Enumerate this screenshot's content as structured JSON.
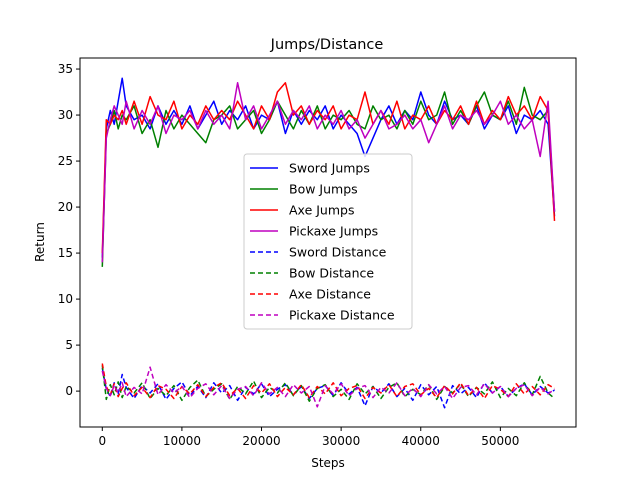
{
  "chart_data": {
    "type": "line",
    "title": "Jumps/Distance",
    "xlabel": "Steps",
    "ylabel": "Return",
    "xlim": [
      -2800,
      59500
    ],
    "ylim": [
      -3.9,
      36.2
    ],
    "xticks": [
      0,
      10000,
      20000,
      30000,
      40000,
      50000
    ],
    "yticks": [
      0,
      5,
      10,
      15,
      20,
      25,
      30,
      35
    ],
    "grid": false,
    "legend_position": "center",
    "series": [
      {
        "name": "Sword Jumps",
        "color": "#0000ff",
        "style": "solid",
        "x": [
          0,
          500,
          1000,
          1500,
          2000,
          2500,
          3000,
          4000,
          5000,
          6000,
          7000,
          8000,
          9000,
          10000,
          11000,
          12000,
          13000,
          14000,
          15000,
          16000,
          17000,
          18000,
          19000,
          20000,
          21000,
          22000,
          23000,
          24000,
          25000,
          26000,
          27000,
          28000,
          29000,
          30000,
          31000,
          32000,
          33000,
          34000,
          35000,
          36000,
          37000,
          38000,
          39000,
          40000,
          41000,
          42000,
          43000,
          44000,
          45000,
          46000,
          47000,
          48000,
          49000,
          50000,
          51000,
          52000,
          53000,
          54000,
          55000,
          56000,
          56800
        ],
        "y": [
          14.5,
          28.5,
          30.5,
          29.0,
          31.5,
          34.0,
          31.0,
          29.5,
          30.0,
          28.5,
          31.0,
          29.0,
          30.5,
          29.0,
          31.0,
          28.5,
          30.0,
          31.5,
          29.0,
          30.5,
          29.5,
          31.0,
          28.5,
          30.0,
          29.5,
          31.5,
          28.0,
          30.5,
          29.0,
          30.5,
          29.5,
          31.0,
          28.5,
          30.0,
          29.0,
          28.0,
          25.5,
          27.5,
          29.5,
          31.0,
          29.0,
          30.5,
          29.5,
          32.5,
          30.0,
          29.0,
          31.5,
          29.5,
          30.0,
          29.0,
          31.0,
          28.5,
          30.0,
          29.5,
          31.0,
          28.0,
          30.0,
          29.5,
          30.5,
          29.0,
          19.0
        ]
      },
      {
        "name": "Bow Jumps",
        "color": "#008000",
        "style": "solid",
        "x": [
          0,
          500,
          1000,
          1500,
          2000,
          2500,
          3000,
          4000,
          5000,
          6000,
          7000,
          8000,
          9000,
          10000,
          11000,
          12000,
          13000,
          14000,
          15000,
          16000,
          17000,
          18000,
          19000,
          20000,
          21000,
          22000,
          23000,
          24000,
          25000,
          26000,
          27000,
          28000,
          29000,
          30000,
          31000,
          32000,
          33000,
          34000,
          35000,
          36000,
          37000,
          38000,
          39000,
          40000,
          41000,
          42000,
          43000,
          44000,
          45000,
          46000,
          47000,
          48000,
          49000,
          50000,
          51000,
          52000,
          53000,
          54000,
          55000,
          56000,
          56800
        ],
        "y": [
          13.5,
          28.0,
          29.0,
          30.5,
          28.5,
          30.0,
          29.5,
          31.0,
          28.0,
          29.5,
          26.5,
          30.5,
          28.5,
          30.0,
          29.0,
          28.0,
          27.0,
          29.5,
          30.0,
          31.0,
          28.5,
          29.5,
          30.5,
          28.0,
          29.5,
          31.5,
          30.0,
          28.5,
          30.5,
          29.0,
          31.0,
          28.5,
          30.0,
          29.5,
          30.5,
          29.0,
          28.5,
          31.0,
          29.5,
          30.0,
          28.5,
          30.5,
          29.0,
          31.5,
          29.5,
          30.0,
          32.5,
          29.0,
          30.5,
          29.0,
          31.0,
          32.5,
          30.0,
          29.5,
          31.5,
          29.0,
          33.0,
          30.0,
          29.5,
          30.5,
          19.5
        ]
      },
      {
        "name": "Axe Jumps",
        "color": "#ff0000",
        "style": "solid",
        "x": [
          0,
          500,
          1000,
          1500,
          2000,
          2500,
          3000,
          4000,
          5000,
          6000,
          7000,
          8000,
          9000,
          10000,
          11000,
          12000,
          13000,
          14000,
          15000,
          16000,
          17000,
          18000,
          19000,
          20000,
          21000,
          22000,
          23000,
          24000,
          25000,
          26000,
          27000,
          28000,
          29000,
          30000,
          31000,
          32000,
          33000,
          34000,
          35000,
          36000,
          37000,
          38000,
          39000,
          40000,
          41000,
          42000,
          43000,
          44000,
          45000,
          46000,
          47000,
          48000,
          49000,
          50000,
          51000,
          52000,
          53000,
          54000,
          55000,
          56000,
          56800
        ],
        "y": [
          15.0,
          29.5,
          29.0,
          30.0,
          29.5,
          30.5,
          29.0,
          31.5,
          29.0,
          32.0,
          30.0,
          29.5,
          31.5,
          28.5,
          30.0,
          29.0,
          31.0,
          29.5,
          30.5,
          29.5,
          31.5,
          30.0,
          28.5,
          31.0,
          29.5,
          32.5,
          33.5,
          30.0,
          31.0,
          29.0,
          30.5,
          29.5,
          31.0,
          28.5,
          30.0,
          29.5,
          32.5,
          29.0,
          30.5,
          29.0,
          31.5,
          28.5,
          30.0,
          29.5,
          31.0,
          29.0,
          30.5,
          29.5,
          31.0,
          29.0,
          31.5,
          29.0,
          30.5,
          29.5,
          32.0,
          30.0,
          31.0,
          29.5,
          32.0,
          30.5,
          18.5
        ]
      },
      {
        "name": "Pickaxe Jumps",
        "color": "#bf00bf",
        "style": "solid",
        "x": [
          0,
          500,
          1000,
          1500,
          2000,
          2500,
          3000,
          4000,
          5000,
          6000,
          7000,
          8000,
          9000,
          10000,
          11000,
          12000,
          13000,
          14000,
          15000,
          16000,
          17000,
          18000,
          19000,
          20000,
          21000,
          22000,
          23000,
          24000,
          25000,
          26000,
          27000,
          28000,
          29000,
          30000,
          31000,
          32000,
          33000,
          34000,
          35000,
          36000,
          37000,
          38000,
          39000,
          40000,
          41000,
          42000,
          43000,
          44000,
          45000,
          46000,
          47000,
          48000,
          49000,
          50000,
          51000,
          52000,
          53000,
          54000,
          55000,
          56000,
          56800
        ],
        "y": [
          14.0,
          27.5,
          29.5,
          31.0,
          30.0,
          29.0,
          31.5,
          28.5,
          30.5,
          29.0,
          31.0,
          28.0,
          30.0,
          29.5,
          30.5,
          28.5,
          30.5,
          29.0,
          30.0,
          28.5,
          33.5,
          29.5,
          31.0,
          28.5,
          30.0,
          31.5,
          29.0,
          30.5,
          29.5,
          31.0,
          28.5,
          30.0,
          29.0,
          30.5,
          28.5,
          29.5,
          27.5,
          29.0,
          30.5,
          28.5,
          29.0,
          30.0,
          28.5,
          29.5,
          27.0,
          29.0,
          31.0,
          28.5,
          30.0,
          29.5,
          30.5,
          29.0,
          30.0,
          31.5,
          29.0,
          30.0,
          28.5,
          29.5,
          25.5,
          31.5,
          19.5
        ]
      },
      {
        "name": "Sword Distance",
        "color": "#0000ff",
        "style": "dashed",
        "x": [
          0,
          500,
          1000,
          1500,
          2000,
          2500,
          3000,
          4000,
          5000,
          6000,
          7000,
          8000,
          9000,
          10000,
          11000,
          12000,
          13000,
          14000,
          15000,
          16000,
          17000,
          18000,
          19000,
          20000,
          21000,
          22000,
          23000,
          24000,
          25000,
          26000,
          27000,
          28000,
          29000,
          30000,
          31000,
          32000,
          33000,
          34000,
          35000,
          36000,
          37000,
          38000,
          39000,
          40000,
          41000,
          42000,
          43000,
          44000,
          45000,
          46000,
          47000,
          48000,
          49000,
          50000,
          51000,
          52000,
          53000,
          54000,
          55000,
          56000,
          56800
        ],
        "y": [
          2.5,
          0.2,
          -0.6,
          0.9,
          -0.3,
          1.8,
          0.4,
          -0.8,
          0.6,
          -0.2,
          0.8,
          -0.9,
          0.3,
          1.0,
          -0.5,
          0.5,
          -0.7,
          0.9,
          -0.2,
          0.6,
          -1.0,
          0.4,
          -0.3,
          0.8,
          -0.6,
          0.2,
          0.7,
          -0.4,
          0.5,
          -0.8,
          0.3,
          0.6,
          -0.5,
          0.9,
          -0.3,
          0.4,
          -1.6,
          0.5,
          -0.2,
          0.8,
          -0.6,
          0.3,
          -1.0,
          0.7,
          -0.4,
          0.5,
          -1.8,
          0.6,
          -0.3,
          0.4,
          -0.7,
          0.9,
          -0.2,
          0.5,
          -0.6,
          0.3,
          0.8,
          -0.4,
          0.5,
          -0.2,
          0.1
        ]
      },
      {
        "name": "Bow Distance",
        "color": "#008000",
        "style": "dashed",
        "x": [
          0,
          500,
          1000,
          1500,
          2000,
          2500,
          3000,
          4000,
          5000,
          6000,
          7000,
          8000,
          9000,
          10000,
          11000,
          12000,
          13000,
          14000,
          15000,
          16000,
          17000,
          18000,
          19000,
          20000,
          21000,
          22000,
          23000,
          24000,
          25000,
          26000,
          27000,
          28000,
          29000,
          30000,
          31000,
          32000,
          33000,
          34000,
          35000,
          36000,
          37000,
          38000,
          39000,
          40000,
          41000,
          42000,
          43000,
          44000,
          45000,
          46000,
          47000,
          48000,
          49000,
          50000,
          51000,
          52000,
          53000,
          54000,
          55000,
          56000,
          56800
        ],
        "y": [
          2.8,
          -0.9,
          0.7,
          -0.4,
          1.0,
          -0.7,
          0.5,
          -0.2,
          0.9,
          -0.8,
          0.3,
          -0.5,
          0.6,
          -1.0,
          0.4,
          1.2,
          -0.6,
          0.2,
          0.8,
          -0.9,
          0.5,
          -0.3,
          1.1,
          -0.7,
          0.4,
          -0.2,
          0.9,
          -0.5,
          0.6,
          -1.1,
          0.3,
          0.7,
          -0.6,
          0.2,
          -0.9,
          0.8,
          -0.3,
          0.5,
          -0.8,
          0.4,
          0.9,
          -0.6,
          0.2,
          -0.4,
          0.7,
          -0.9,
          0.5,
          -0.2,
          0.8,
          -0.6,
          0.4,
          -0.3,
          1.0,
          -0.7,
          0.3,
          -0.5,
          0.9,
          -0.4,
          1.6,
          -0.2,
          -0.8
        ]
      },
      {
        "name": "Axe Distance",
        "color": "#ff0000",
        "style": "dashed",
        "x": [
          0,
          500,
          1000,
          1500,
          2000,
          2500,
          3000,
          4000,
          5000,
          6000,
          7000,
          8000,
          9000,
          10000,
          11000,
          12000,
          13000,
          14000,
          15000,
          16000,
          17000,
          18000,
          19000,
          20000,
          21000,
          22000,
          23000,
          24000,
          25000,
          26000,
          27000,
          28000,
          29000,
          30000,
          31000,
          32000,
          33000,
          34000,
          35000,
          36000,
          37000,
          38000,
          39000,
          40000,
          41000,
          42000,
          43000,
          44000,
          45000,
          46000,
          47000,
          48000,
          49000,
          50000,
          51000,
          52000,
          53000,
          54000,
          55000,
          56000,
          56800
        ],
        "y": [
          3.0,
          0.5,
          -0.4,
          0.8,
          -0.6,
          0.3,
          0.9,
          -0.5,
          0.4,
          -0.7,
          0.6,
          0.2,
          -0.8,
          0.5,
          -0.3,
          0.7,
          -0.6,
          0.4,
          0.9,
          -0.5,
          0.3,
          -0.8,
          0.6,
          -0.2,
          0.8,
          -0.6,
          0.4,
          -0.4,
          0.7,
          -0.7,
          0.5,
          -0.3,
          0.9,
          -0.5,
          0.3,
          0.6,
          -0.8,
          0.4,
          -0.2,
          0.7,
          -0.6,
          0.5,
          0.8,
          -0.4,
          0.3,
          -0.7,
          0.6,
          -0.3,
          0.9,
          -0.5,
          0.4,
          -0.8,
          0.6,
          0.2,
          -0.6,
          0.8,
          -0.3,
          0.5,
          -0.4,
          0.7,
          0.3
        ]
      },
      {
        "name": "Pickaxe Distance",
        "color": "#bf00bf",
        "style": "dashed",
        "x": [
          0,
          500,
          1000,
          1500,
          2000,
          2500,
          3000,
          4000,
          5000,
          6000,
          7000,
          8000,
          9000,
          10000,
          11000,
          12000,
          13000,
          14000,
          15000,
          16000,
          17000,
          18000,
          19000,
          20000,
          21000,
          22000,
          23000,
          24000,
          25000,
          26000,
          27000,
          28000,
          29000,
          30000,
          31000,
          32000,
          33000,
          34000,
          35000,
          36000,
          37000,
          38000,
          39000,
          40000,
          41000,
          42000,
          43000,
          44000,
          45000,
          46000,
          47000,
          48000,
          49000,
          50000,
          51000,
          52000,
          53000,
          54000,
          55000,
          56000,
          56800
        ],
        "y": [
          2.2,
          0.3,
          -0.5,
          0.6,
          -0.2,
          0.9,
          -0.6,
          0.4,
          -0.3,
          2.6,
          -0.4,
          0.7,
          -0.2,
          0.5,
          -0.7,
          0.3,
          0.8,
          -0.4,
          0.6,
          -0.8,
          0.2,
          0.5,
          -0.5,
          0.9,
          -0.3,
          0.4,
          -0.6,
          0.7,
          -0.2,
          0.5,
          -1.7,
          0.6,
          -0.3,
          0.8,
          -0.5,
          0.3,
          0.6,
          -0.7,
          0.4,
          -0.2,
          0.9,
          -0.5,
          0.3,
          -0.6,
          0.7,
          -0.3,
          0.5,
          -0.8,
          0.4,
          0.6,
          -0.4,
          0.8,
          -0.2,
          0.5,
          -0.6,
          0.3,
          0.7,
          -0.5,
          0.4,
          -0.3,
          0.2
        ]
      }
    ]
  }
}
